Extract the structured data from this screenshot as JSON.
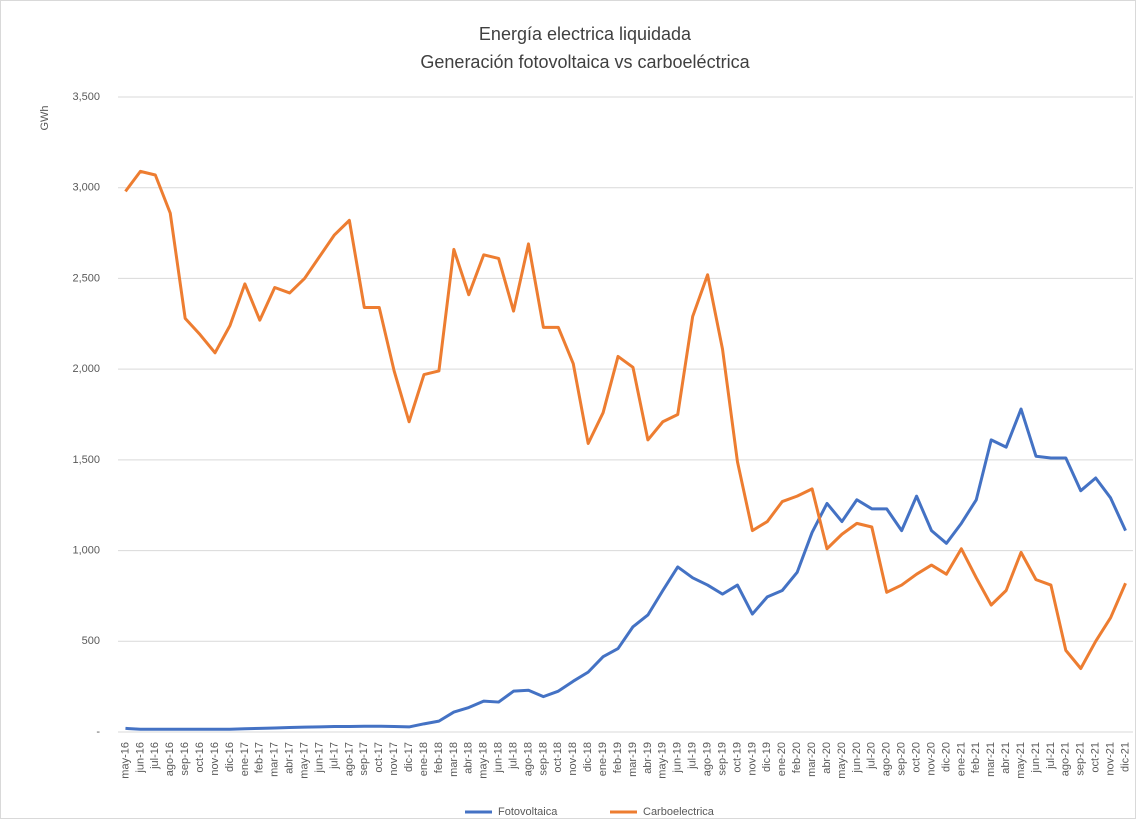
{
  "chart_data": {
    "type": "line",
    "title": "Energía electrica liquidada",
    "subtitle": "Generación fotovoltaica vs carboeléctrica",
    "y_label": "GWh",
    "categories": [
      "may-16",
      "jun-16",
      "jul-16",
      "ago-16",
      "sep-16",
      "oct-16",
      "nov-16",
      "dic-16",
      "ene-17",
      "feb-17",
      "mar-17",
      "abr-17",
      "may-17",
      "jun-17",
      "jul-17",
      "ago-17",
      "sep-17",
      "oct-17",
      "nov-17",
      "dic-17",
      "ene-18",
      "feb-18",
      "mar-18",
      "abr-18",
      "may-18",
      "jun-18",
      "jul-18",
      "ago-18",
      "sep-18",
      "oct-18",
      "nov-18",
      "dic-18",
      "ene-19",
      "feb-19",
      "mar-19",
      "abr-19",
      "may-19",
      "jun-19",
      "jul-19",
      "ago-19",
      "sep-19",
      "oct-19",
      "nov-19",
      "dic-19",
      "ene-20",
      "feb-20",
      "mar-20",
      "abr-20",
      "may-20",
      "jun-20",
      "jul-20",
      "ago-20",
      "sep-20",
      "oct-20",
      "nov-20",
      "dic-20",
      "ene-21",
      "feb-21",
      "mar-21",
      "abr-21",
      "may-21",
      "jun-21",
      "jul-21",
      "ago-21",
      "sep-21",
      "oct-21",
      "nov-21",
      "dic-21"
    ],
    "series": [
      {
        "name": "Fotovoltaica",
        "color": "#4472c4",
        "values": [
          20,
          15,
          15,
          15,
          15,
          15,
          15,
          15,
          18,
          20,
          22,
          25,
          27,
          28,
          30,
          30,
          32,
          32,
          30,
          28,
          45,
          60,
          110,
          135,
          170,
          165,
          225,
          230,
          195,
          225,
          280,
          330,
          415,
          460,
          580,
          645,
          780,
          910,
          850,
          810,
          760,
          810,
          650,
          745,
          780,
          880,
          1100,
          1260,
          1160,
          1280,
          1230,
          1230,
          1110,
          1300,
          1110,
          1040,
          1150,
          1280,
          1610,
          1570,
          1780,
          1520,
          1510,
          1510,
          1330,
          1400,
          1290,
          1110
        ]
      },
      {
        "name": "Carboelectrica",
        "color": "#ed7d31",
        "values": [
          2980,
          3090,
          3070,
          2860,
          2280,
          2190,
          2090,
          2240,
          2470,
          2270,
          2450,
          2420,
          2500,
          2620,
          2740,
          2820,
          2340,
          2340,
          1990,
          1710,
          1970,
          1990,
          2660,
          2410,
          2630,
          2610,
          2320,
          2690,
          2230,
          2230,
          2030,
          1590,
          1760,
          2070,
          2010,
          1610,
          1710,
          1750,
          2290,
          2520,
          2110,
          1490,
          1110,
          1160,
          1270,
          1300,
          1340,
          1010,
          1090,
          1150,
          1130,
          770,
          810,
          870,
          920,
          870,
          1010,
          850,
          700,
          780,
          990,
          840,
          810,
          450,
          350,
          500,
          630,
          820
        ]
      }
    ],
    "ylim": [
      0,
      3500
    ],
    "yticks": [
      {
        "value": 0,
        "label": "-"
      },
      500,
      {
        "value": 1000,
        "label": "1,000"
      },
      {
        "value": 1500,
        "label": "1,500"
      },
      {
        "value": 2000,
        "label": "2,000"
      },
      {
        "value": 2500,
        "label": "2,500"
      },
      {
        "value": 3000,
        "label": "3,000"
      },
      {
        "value": 3500,
        "label": "3,500"
      }
    ],
    "grid": true,
    "legend": "bottom"
  }
}
